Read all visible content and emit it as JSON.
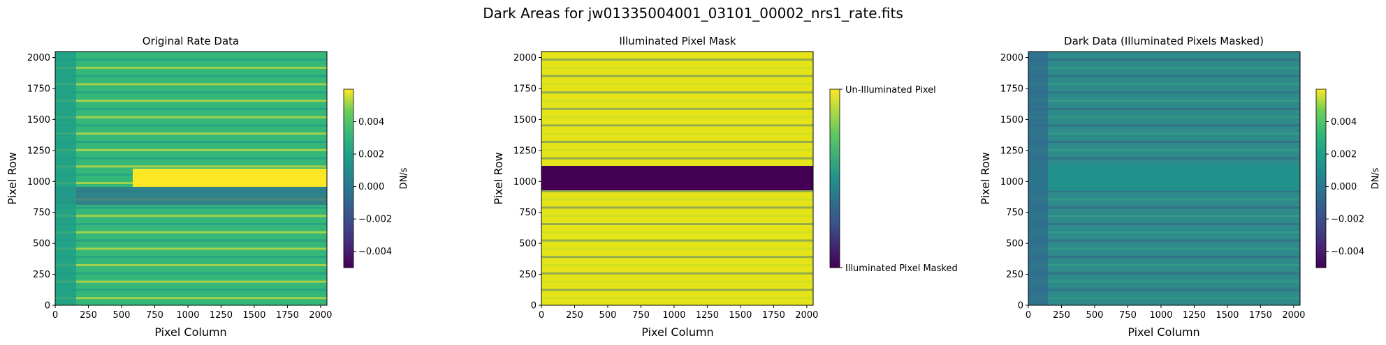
{
  "figure": {
    "title": "Dark Areas for jw01335004001_03101_00002_nrs1_rate.fits"
  },
  "chart_data": [
    {
      "type": "heatmap",
      "title": "Original Rate Data",
      "xlabel": "Pixel Column",
      "ylabel": "Pixel Row",
      "xlim": [
        0,
        2048
      ],
      "ylim": [
        0,
        2048
      ],
      "xticks": [
        0,
        250,
        500,
        750,
        1000,
        1250,
        1500,
        1750,
        2000
      ],
      "yticks": [
        0,
        250,
        500,
        750,
        1000,
        1250,
        1500,
        1750,
        2000
      ],
      "colormap": "viridis",
      "colorbar": {
        "label": "DN/s",
        "vmin": -0.005,
        "vmax": 0.006,
        "ticks": [
          -0.004,
          -0.002,
          0.0,
          0.002,
          0.004
        ],
        "tick_labels": [
          "−0.004",
          "−0.002",
          "0.000",
          "0.002",
          "0.004"
        ]
      },
      "bright_band_rows": [
        950,
        1100
      ],
      "bright_band_cols": [
        600,
        2048
      ]
    },
    {
      "type": "heatmap",
      "title": "Illuminated Pixel Mask",
      "xlabel": "Pixel Column",
      "ylabel": "Pixel Row",
      "xlim": [
        0,
        2048
      ],
      "ylim": [
        0,
        2048
      ],
      "xticks": [
        0,
        250,
        500,
        750,
        1000,
        1250,
        1500,
        1750,
        2000
      ],
      "yticks": [
        0,
        250,
        500,
        750,
        1000,
        1250,
        1500,
        1750,
        2000
      ],
      "colormap": "viridis",
      "colorbar": {
        "label": "",
        "tick_labels": [
          "Un-Illuminated Pixel",
          "Illuminated Pixel Masked"
        ]
      },
      "masked_band_rows": [
        920,
        1110
      ]
    },
    {
      "type": "heatmap",
      "title": "Dark Data (Illuminated Pixels Masked)",
      "xlabel": "Pixel Column",
      "ylabel": "Pixel Row",
      "xlim": [
        0,
        2048
      ],
      "ylim": [
        0,
        2048
      ],
      "xticks": [
        0,
        250,
        500,
        750,
        1000,
        1250,
        1500,
        1750,
        2000
      ],
      "yticks": [
        0,
        250,
        500,
        750,
        1000,
        1250,
        1500,
        1750,
        2000
      ],
      "colormap": "viridis",
      "colorbar": {
        "label": "DN/s",
        "vmin": -0.005,
        "vmax": 0.006,
        "ticks": [
          -0.004,
          -0.002,
          0.0,
          0.002,
          0.004
        ],
        "tick_labels": [
          "−0.004",
          "−0.002",
          "0.000",
          "0.002",
          "0.004"
        ]
      },
      "masked_band_rows": [
        920,
        1130
      ]
    }
  ]
}
